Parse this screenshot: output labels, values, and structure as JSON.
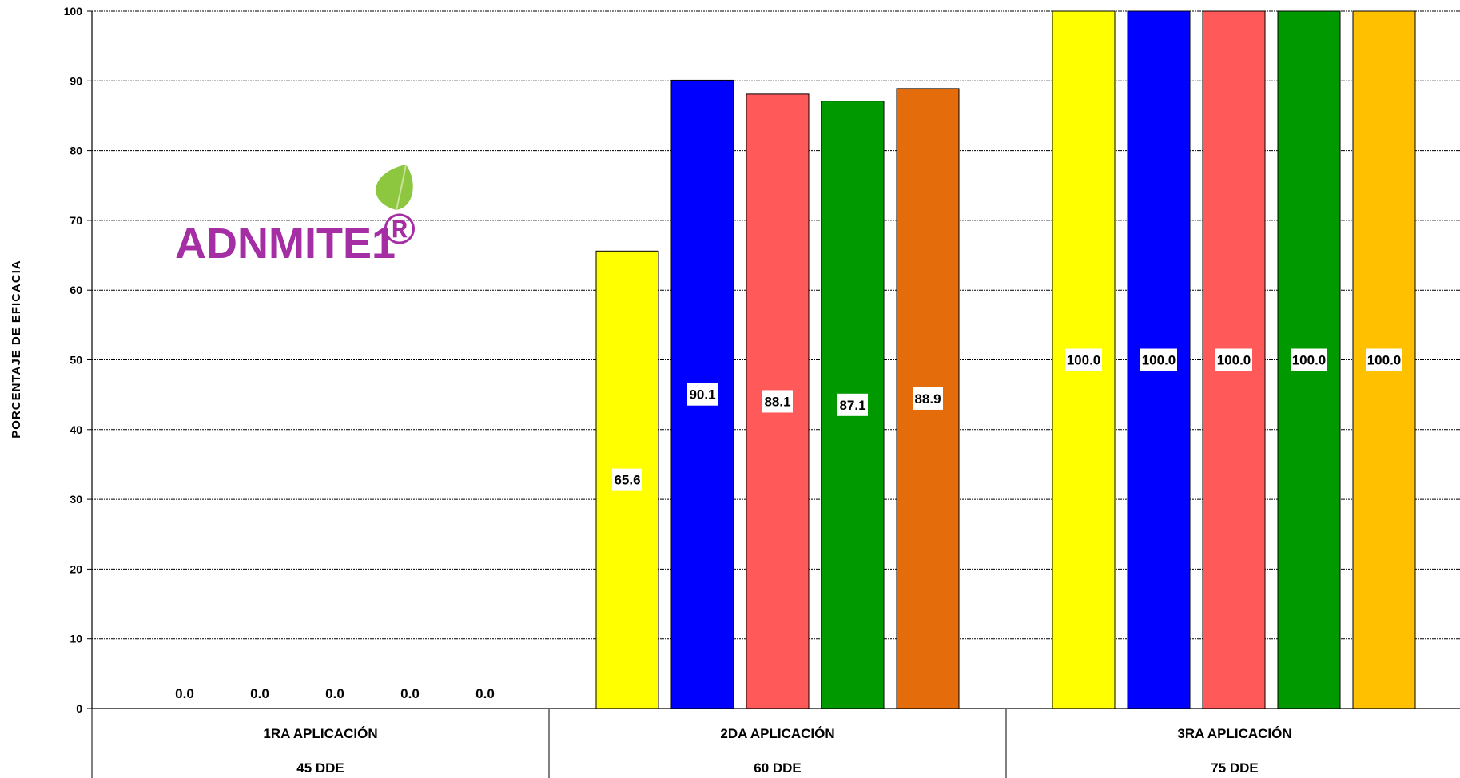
{
  "chart_data": {
    "type": "bar",
    "ylabel": "PORCENTAJE DE EFICACIA",
    "xlabel": "",
    "ylim": [
      0,
      100
    ],
    "yticks": [
      0,
      10,
      20,
      30,
      40,
      50,
      60,
      70,
      80,
      90,
      100
    ],
    "grid": true,
    "legend": "none",
    "categories": [
      {
        "name": "1RA APLICACIÓN",
        "sub": "45 DDE"
      },
      {
        "name": "2DA APLICACIÓN",
        "sub": "60 DDE"
      },
      {
        "name": "3RA APLICACIÓN",
        "sub": "75 DDE"
      }
    ],
    "series": [
      {
        "color": "#ffff00",
        "values": [
          0.0,
          65.6,
          100.0
        ]
      },
      {
        "color": "#0000ff",
        "values": [
          0.0,
          90.1,
          100.0
        ]
      },
      {
        "color": "#ff5959",
        "values": [
          0.0,
          88.1,
          100.0
        ]
      },
      {
        "color": "#009900",
        "values": [
          0.0,
          87.1,
          100.0
        ]
      },
      {
        "color": "#e46c0a",
        "values": [
          0.0,
          88.9,
          null
        ]
      },
      {
        "color": "#ffc000",
        "values": [
          null,
          null,
          100.0
        ]
      }
    ],
    "labels": [
      [
        "0.0",
        "0.0",
        "0.0",
        "0.0",
        "0.0"
      ],
      [
        "65.6",
        "90.1",
        "88.1",
        "87.1",
        "88.9"
      ],
      [
        "100.0",
        "100.0",
        "100.0",
        "100.0",
        "100.0"
      ]
    ]
  },
  "watermark": {
    "text": "ADNMITE1",
    "mark": "®",
    "text_color": "#a52ea5",
    "leaf_color": "#8dc63f",
    "icon": "leaf-icon"
  }
}
